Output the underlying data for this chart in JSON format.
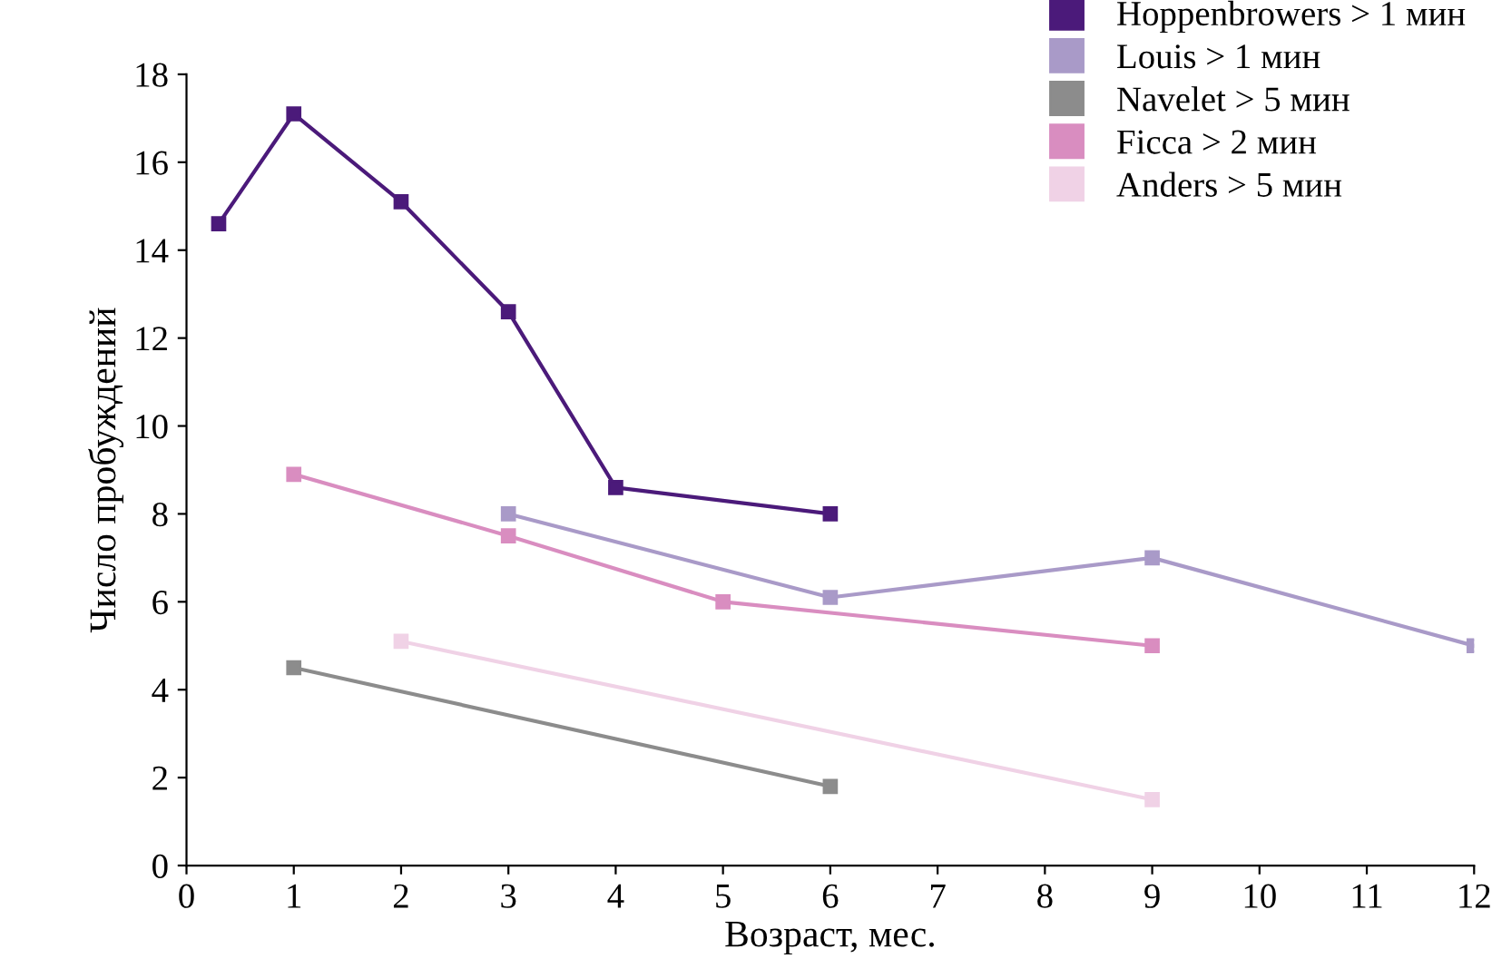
{
  "chart_data": {
    "type": "line",
    "xlabel": "Возраст, мес.",
    "ylabel": "Число пробуждений",
    "xlim": [
      0,
      12
    ],
    "xticks": [
      0,
      1,
      2,
      3,
      4,
      5,
      6,
      7,
      8,
      9,
      10,
      11,
      12
    ],
    "ylim": [
      0,
      18
    ],
    "yticks": [
      0,
      2,
      4,
      6,
      8,
      10,
      12,
      14,
      16,
      18
    ],
    "grid": false,
    "legend": "top right",
    "marker": "square",
    "line_style": "solid",
    "series": [
      {
        "name": "Hoppenbrowers > 1 мин",
        "color": "#4b1a7a",
        "x": [
          0.3,
          1,
          2,
          3,
          4,
          6
        ],
        "values": [
          14.6,
          17.1,
          15.1,
          12.6,
          8.6,
          8.0
        ]
      },
      {
        "name": "Louis > 1 мин",
        "color": "#a99ac8",
        "x": [
          3,
          6,
          9,
          12
        ],
        "values": [
          8.0,
          6.1,
          7.0,
          5.0
        ]
      },
      {
        "name": "Navelet > 5 мин",
        "color": "#8c8c8c",
        "x": [
          1,
          6
        ],
        "values": [
          4.5,
          1.8
        ]
      },
      {
        "name": "Ficca > 2 мин",
        "color": "#d98dc0",
        "x": [
          1,
          3,
          5,
          9
        ],
        "values": [
          8.9,
          7.5,
          6.0,
          5.0
        ]
      },
      {
        "name": "Anders > 5 мин",
        "color": "#f0d2e6",
        "x": [
          2,
          9
        ],
        "values": [
          5.1,
          1.5
        ]
      }
    ]
  }
}
